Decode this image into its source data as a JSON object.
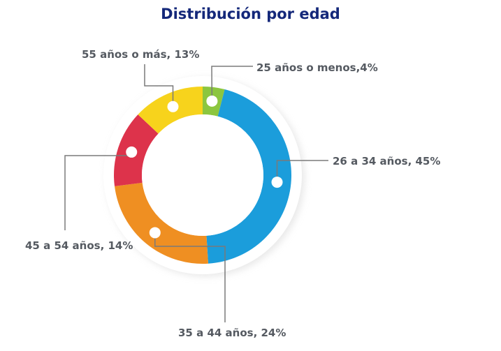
{
  "title": "Distribución por edad",
  "chart_data": {
    "type": "pie",
    "title": "Distribución por edad",
    "donut": true,
    "series": [
      {
        "name": "25 años o menos",
        "value": 4,
        "color": "#8cc63f",
        "label": "25 años o menos,4%"
      },
      {
        "name": "26 a 34 años",
        "value": 45,
        "color": "#1b9ddb",
        "label": "26 a 34 años, 45%"
      },
      {
        "name": "35 a 44 años",
        "value": 24,
        "color": "#ef8f22",
        "label": "35 a 44 años, 24%"
      },
      {
        "name": "45 a 54 años",
        "value": 14,
        "color": "#dd334b",
        "label": "45 a 54 años, 14%"
      },
      {
        "name": "55 años o más",
        "value": 13,
        "color": "#f7d31c",
        "label": "55 años o más, 13%"
      }
    ]
  }
}
